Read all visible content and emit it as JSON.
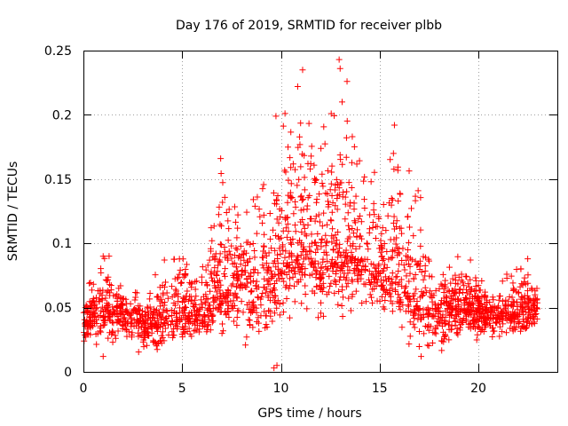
{
  "chart_data": {
    "type": "scatter",
    "title": "Day 176 of 2019, SRMTID for receiver plbb",
    "xlabel": "GPS time / hours",
    "ylabel": "SRMTID / TECUs",
    "xlim": [
      0,
      24
    ],
    "ylim": [
      0,
      0.25
    ],
    "x_ticks": [
      0,
      5,
      10,
      15,
      20
    ],
    "y_ticks": [
      0,
      0.05,
      0.1,
      0.15,
      0.2,
      0.25
    ],
    "x_tick_labels": [
      "0",
      "5",
      "10",
      "15",
      "20"
    ],
    "y_tick_labels": [
      "0",
      "0.05",
      "0.1",
      "0.15",
      "0.2",
      "0.25"
    ],
    "grid": true,
    "marker": "+",
    "color": "#ff0000",
    "data_range_hours": [
      0,
      23
    ],
    "envelope": [
      {
        "t": 0.0,
        "center": 0.038,
        "upper": 0.06,
        "lower": 0.02
      },
      {
        "t": 1.0,
        "center": 0.052,
        "upper": 0.09,
        "lower": 0.012
      },
      {
        "t": 2.0,
        "center": 0.045,
        "upper": 0.065,
        "lower": 0.025
      },
      {
        "t": 3.0,
        "center": 0.036,
        "upper": 0.06,
        "lower": 0.013
      },
      {
        "t": 4.0,
        "center": 0.04,
        "upper": 0.087,
        "lower": 0.014
      },
      {
        "t": 5.0,
        "center": 0.05,
        "upper": 0.088,
        "lower": 0.018
      },
      {
        "t": 6.0,
        "center": 0.047,
        "upper": 0.085,
        "lower": 0.025
      },
      {
        "t": 7.0,
        "center": 0.062,
        "upper": 0.166,
        "lower": 0.03
      },
      {
        "t": 8.0,
        "center": 0.068,
        "upper": 0.128,
        "lower": 0.025
      },
      {
        "t": 9.0,
        "center": 0.062,
        "upper": 0.138,
        "lower": 0.005
      },
      {
        "t": 10.0,
        "center": 0.085,
        "upper": 0.199,
        "lower": 0.035
      },
      {
        "t": 11.0,
        "center": 0.1,
        "upper": 0.235,
        "lower": 0.045
      },
      {
        "t": 12.0,
        "center": 0.082,
        "upper": 0.18,
        "lower": 0.04
      },
      {
        "t": 13.0,
        "center": 0.1,
        "upper": 0.243,
        "lower": 0.035
      },
      {
        "t": 14.0,
        "center": 0.09,
        "upper": 0.17,
        "lower": 0.055
      },
      {
        "t": 15.0,
        "center": 0.08,
        "upper": 0.15,
        "lower": 0.04
      },
      {
        "t": 16.0,
        "center": 0.07,
        "upper": 0.192,
        "lower": 0.03
      },
      {
        "t": 17.0,
        "center": 0.052,
        "upper": 0.14,
        "lower": 0.012
      },
      {
        "t": 18.0,
        "center": 0.045,
        "upper": 0.08,
        "lower": 0.015
      },
      {
        "t": 19.0,
        "center": 0.05,
        "upper": 0.09,
        "lower": 0.02
      },
      {
        "t": 20.0,
        "center": 0.048,
        "upper": 0.072,
        "lower": 0.025
      },
      {
        "t": 21.0,
        "center": 0.044,
        "upper": 0.065,
        "lower": 0.022
      },
      {
        "t": 22.0,
        "center": 0.047,
        "upper": 0.09,
        "lower": 0.025
      },
      {
        "t": 23.0,
        "center": 0.05,
        "upper": 0.07,
        "lower": 0.028
      }
    ],
    "peaks": [
      {
        "x": 6.95,
        "y": 0.166
      },
      {
        "x": 9.75,
        "y": 0.199
      },
      {
        "x": 11.1,
        "y": 0.235
      },
      {
        "x": 10.85,
        "y": 0.222
      },
      {
        "x": 12.95,
        "y": 0.243
      },
      {
        "x": 13.0,
        "y": 0.236
      },
      {
        "x": 13.35,
        "y": 0.226
      },
      {
        "x": 13.1,
        "y": 0.21
      },
      {
        "x": 15.75,
        "y": 0.192
      },
      {
        "x": 15.7,
        "y": 0.17
      },
      {
        "x": 16.95,
        "y": 0.141
      },
      {
        "x": 9.65,
        "y": 0.003
      },
      {
        "x": 9.8,
        "y": 0.005
      },
      {
        "x": 1.3,
        "y": 0.09
      },
      {
        "x": 4.1,
        "y": 0.087
      },
      {
        "x": 1.0,
        "y": 0.012
      },
      {
        "x": 17.1,
        "y": 0.012
      },
      {
        "x": 22.5,
        "y": 0.088
      },
      {
        "x": 19.6,
        "y": 0.087
      }
    ]
  }
}
